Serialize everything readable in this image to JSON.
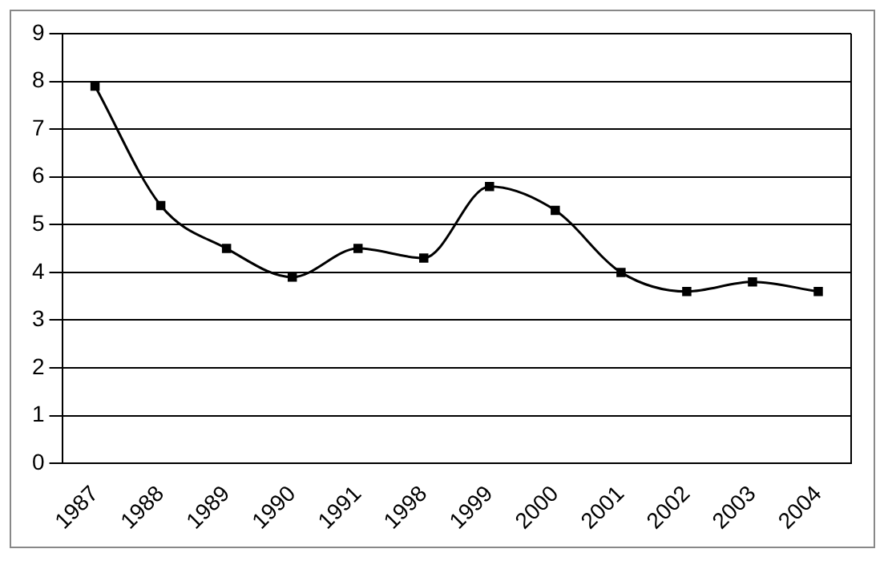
{
  "chart_data": {
    "type": "line",
    "categories": [
      "1987",
      "1988",
      "1989",
      "1990",
      "1991",
      "1998",
      "1999",
      "2000",
      "2001",
      "2002",
      "2003",
      "2004"
    ],
    "series": [
      {
        "color": "#000000",
        "values": [
          7.9,
          5.4,
          4.5,
          3.9,
          4.5,
          4.3,
          5.8,
          5.3,
          4.0,
          3.6,
          3.8,
          3.6
        ]
      }
    ],
    "ylim": [
      0,
      9
    ],
    "yticks": [
      0,
      1,
      2,
      3,
      4,
      5,
      6,
      7,
      8,
      9
    ],
    "grid": "y",
    "legend": false,
    "marker": "square",
    "line_style": "solid"
  }
}
